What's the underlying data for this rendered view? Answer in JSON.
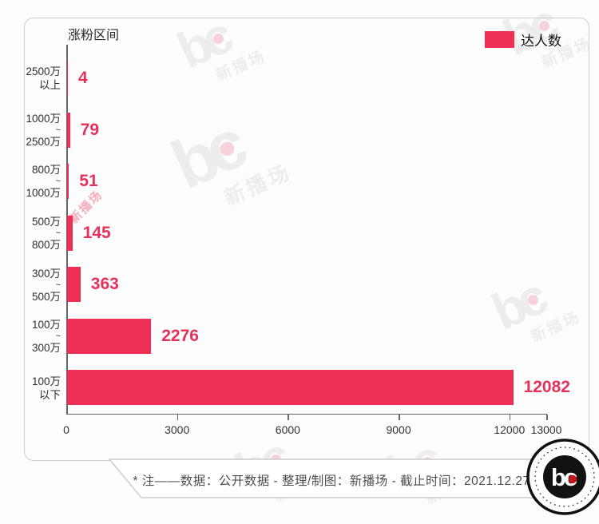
{
  "header": {
    "axis_title": "涨粉区间",
    "legend_label": "达人数"
  },
  "chart_data": {
    "type": "bar",
    "orientation": "horizontal",
    "title": "涨粉区间",
    "series_name": "达人数",
    "categories": [
      [
        "2500万",
        "以上"
      ],
      [
        "1000万",
        "~",
        "2500万"
      ],
      [
        "800万",
        "~",
        "1000万"
      ],
      [
        "500万",
        "~",
        "800万"
      ],
      [
        "300万",
        "~",
        "500万"
      ],
      [
        "100万",
        "~",
        "300万"
      ],
      [
        "100万",
        "以下"
      ]
    ],
    "values": [
      4,
      79,
      51,
      145,
      363,
      2276,
      12082
    ],
    "x_ticks": [
      0,
      3000,
      6000,
      9000,
      12000,
      13000
    ],
    "xlim": [
      0,
      13000
    ],
    "grid": false,
    "legend_position": "top-right"
  },
  "footer": {
    "note": "* 注——数据：公开数据  -  整理/制图：新播场  -  截止时间：2021.12.27"
  },
  "logo": {
    "text": "bc"
  },
  "watermark": {
    "glyph": "bc",
    "name": "新播场"
  },
  "colors": {
    "bar": "#ee2e55",
    "value_text": "#e5315c",
    "axis": "#666666",
    "card_border": "#cccccc",
    "footer_text": "#4d4d4d",
    "watermark_gray": "#ededed",
    "watermark_dot": "#f8d2da",
    "watermark_red": "#f5aeba",
    "logo_dark": "#111111",
    "logo_dot": "#c4161d"
  }
}
